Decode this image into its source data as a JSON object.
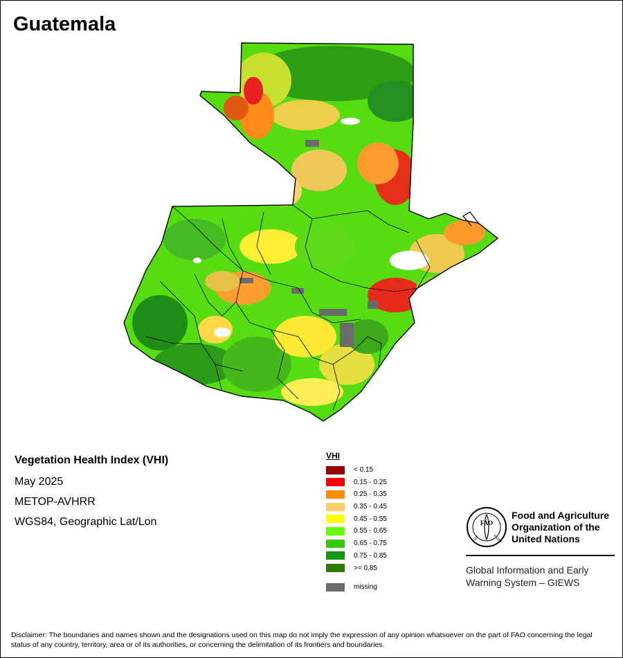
{
  "map": {
    "title": "Guatemala"
  },
  "info": {
    "title": "Vegetation Health Index (VHI)",
    "date": "May 2025",
    "sensor": "METOP-AVHRR",
    "projection": "WGS84, Geographic Lat/Lon"
  },
  "legend": {
    "title": "VHI",
    "items": [
      {
        "label": "< 0.15",
        "color": "#990000"
      },
      {
        "label": "0.15 - 0.25",
        "color": "#ff0000"
      },
      {
        "label": "0.25 - 0.35",
        "color": "#ff8c00"
      },
      {
        "label": "0.35 - 0.45",
        "color": "#ffcc66"
      },
      {
        "label": "0.45 - 0.55",
        "color": "#ffff00"
      },
      {
        "label": "0.55 - 0.65",
        "color": "#66ff00"
      },
      {
        "label": "0.65 - 0.75",
        "color": "#33cc00"
      },
      {
        "label": "0.75 - 0.85",
        "color": "#119911"
      },
      {
        "label": ">= 0.85",
        "color": "#2d7a00"
      }
    ],
    "missing": {
      "label": "missing",
      "color": "#6b6b6b"
    }
  },
  "branding": {
    "logo_text": "FAO",
    "logo_ring_left": "FIAT",
    "logo_ring_right": "PANIS",
    "org_line1": "Food and Agriculture",
    "org_line2": "Organization of the",
    "org_line3": "United Nations",
    "system_line1": "Global Information and Early",
    "system_line2": "Warning System – GIEWS"
  },
  "disclaimer": "Disclaimer: The boundaries and names shown and the designations used on this map do not imply the expression of any opinion whatsoever on the part of FAO concerning the legal status of any country, territory, area or of its authorities, or concerning the delimitation of its frontiers and boundaries."
}
